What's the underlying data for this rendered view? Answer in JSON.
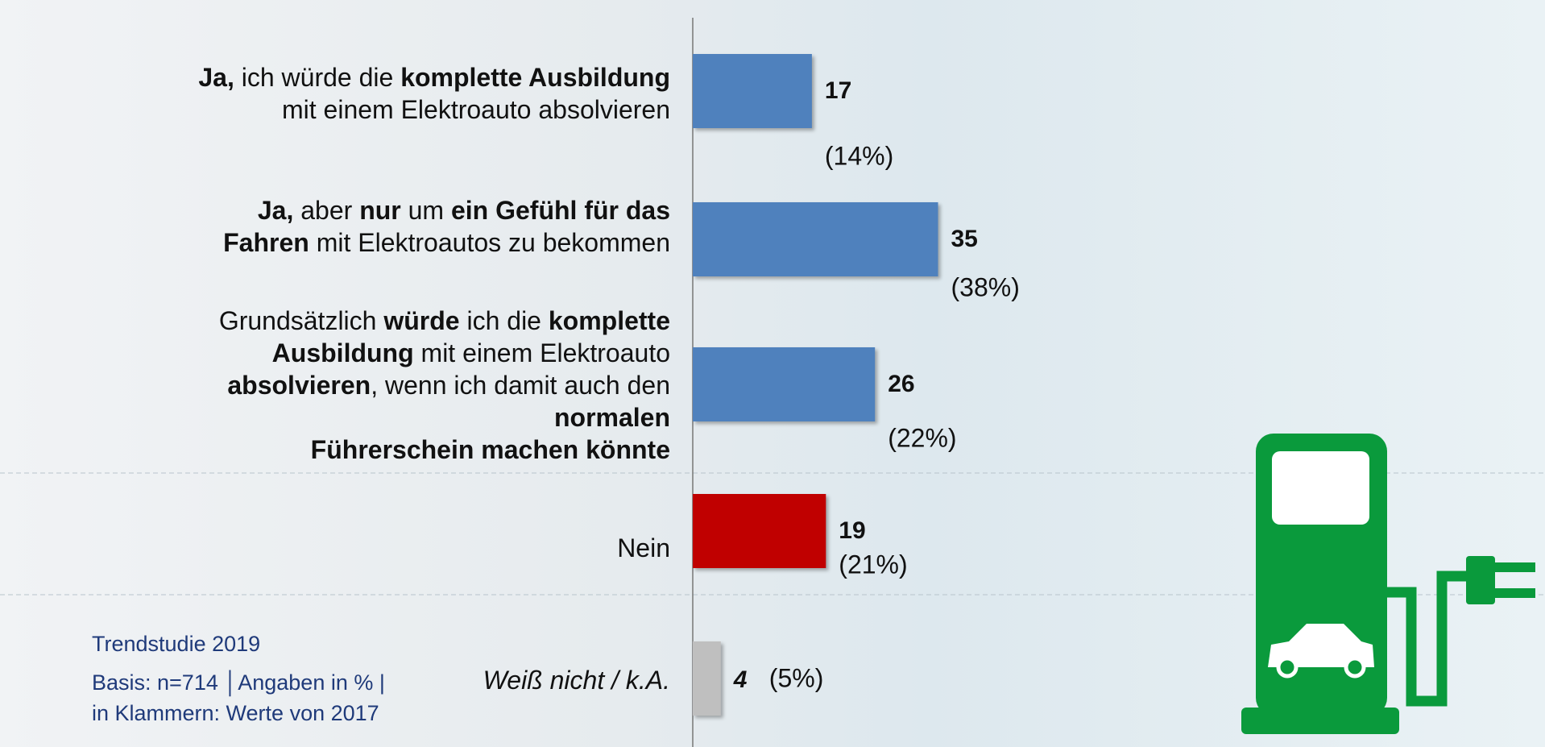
{
  "chart_data": {
    "type": "bar",
    "categories": [
      [
        [
          {
            "text": "Ja,",
            "bold": true
          },
          {
            "text": " ich würde die "
          },
          {
            "text": "komplette Ausbildung",
            "bold": true
          }
        ],
        [
          {
            "text": "mit einem Elektroauto absolvieren"
          }
        ]
      ],
      [
        [
          {
            "text": "Ja,",
            "bold": true
          },
          {
            "text": " aber "
          },
          {
            "text": "nur",
            "bold": true
          },
          {
            "text": " um "
          },
          {
            "text": "ein Gefühl für das",
            "bold": true
          }
        ],
        [
          {
            "text": "Fahren",
            "bold": true
          },
          {
            "text": " mit Elektroautos zu bekommen"
          }
        ]
      ],
      [
        [
          {
            "text": "Grundsätzlich "
          },
          {
            "text": "würde",
            "bold": true
          },
          {
            "text": " ich die "
          },
          {
            "text": "komplette",
            "bold": true
          }
        ],
        [
          {
            "text": "Ausbildung",
            "bold": true
          },
          {
            "text": " mit einem Elektroauto"
          }
        ],
        [
          {
            "text": "absolvieren",
            "bold": true
          },
          {
            "text": ", wenn ich damit auch den"
          }
        ],
        [
          {
            "text": "normalen",
            "bold": true
          }
        ],
        [
          {
            "text": "Führerschein machen könnte",
            "bold": true
          }
        ]
      ],
      [
        [
          {
            "text": "Nein"
          }
        ]
      ],
      [
        [
          {
            "text": "Weiß nicht / k.A.",
            "italic": true
          }
        ]
      ]
    ],
    "series": [
      {
        "values": [
          17,
          35,
          26,
          19,
          4
        ],
        "colors": [
          "#4f81bd",
          "#4f81bd",
          "#4f81bd",
          "#c00000",
          "#bfbfbf"
        ]
      },
      {
        "values": [
          14,
          38,
          22,
          21,
          5
        ],
        "value_labels": [
          "(14%)",
          "(38%)",
          "(22%)",
          "(21%)",
          "(5%)"
        ]
      }
    ],
    "notes": [
      "Trendstudie 2019",
      "Basis: n=714 │Angaben in % | in Klammern: Werte von 2017"
    ]
  }
}
